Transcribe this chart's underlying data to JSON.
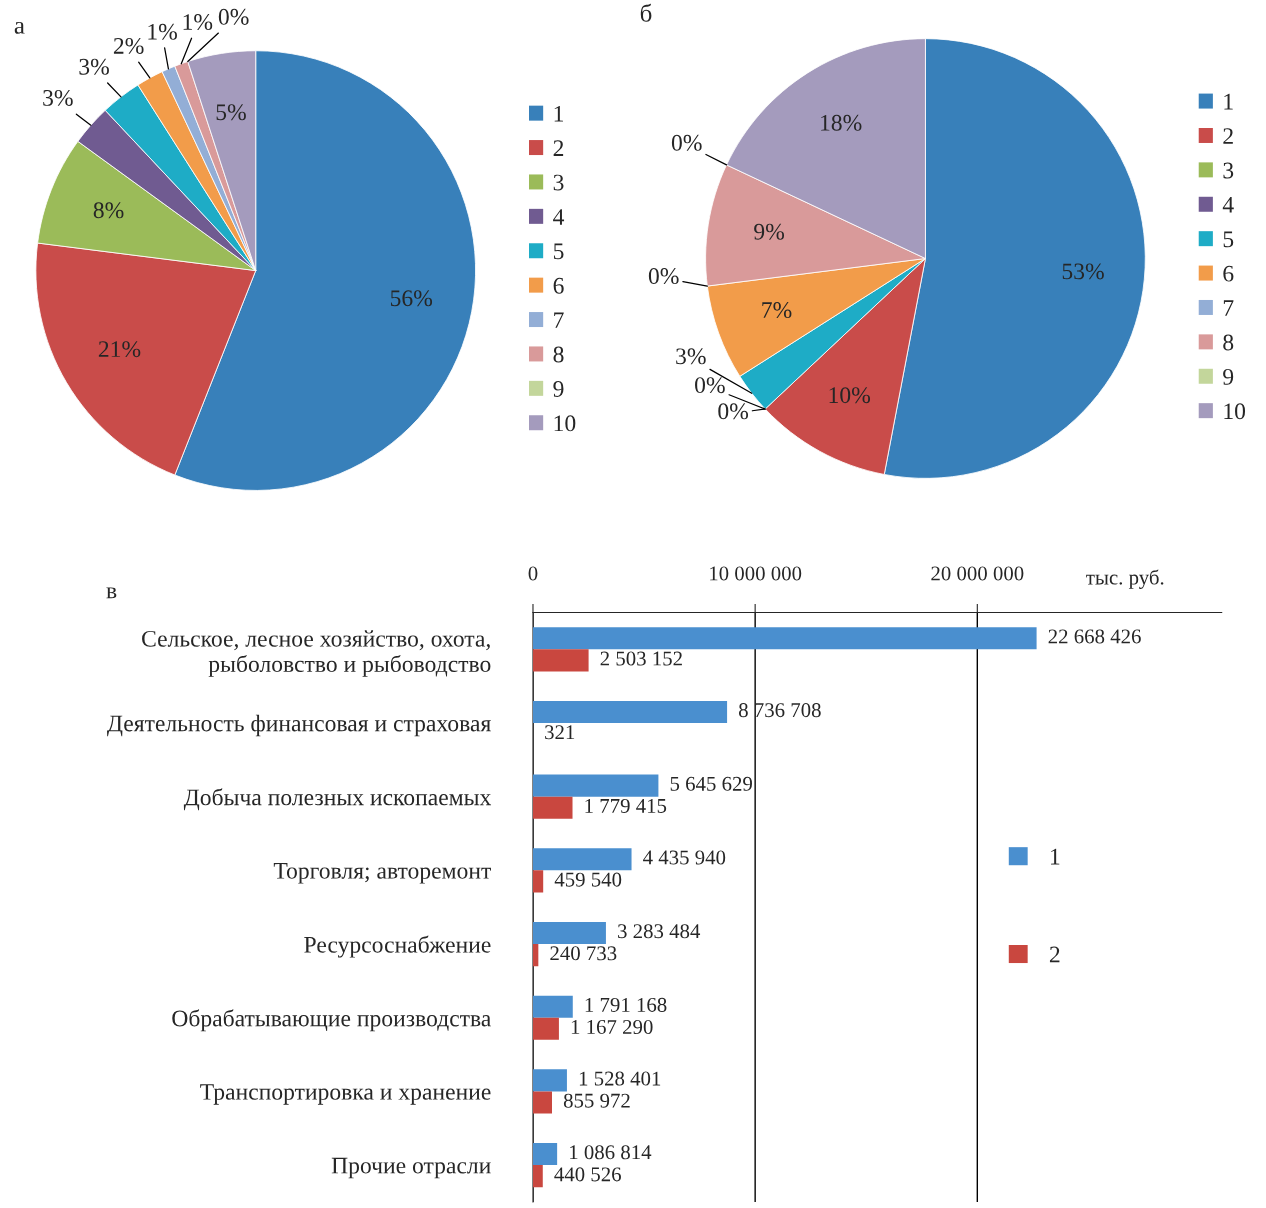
{
  "chart_data": [
    {
      "type": "pie",
      "title": "а",
      "categories": [
        "1",
        "2",
        "3",
        "4",
        "5",
        "6",
        "7",
        "8",
        "9",
        "10"
      ],
      "values": [
        56,
        21,
        8,
        3,
        3,
        2,
        1,
        1,
        0,
        5
      ],
      "value_labels": [
        "56%",
        "21%",
        "8%",
        "3%",
        "3%",
        "2%",
        "1%",
        "1%",
        "0%",
        "5%"
      ],
      "colors": [
        "#3880ba",
        "#c94c4a",
        "#9bbb59",
        "#705b91",
        "#1eacc6",
        "#f29c4a",
        "#93aed6",
        "#d99a9a",
        "#c3d69b",
        "#a49bbd"
      ],
      "legend": "right"
    },
    {
      "type": "pie",
      "title": "б",
      "categories": [
        "1",
        "2",
        "3",
        "4",
        "5",
        "6",
        "7",
        "8",
        "9",
        "10"
      ],
      "values": [
        53,
        10,
        0,
        0,
        3,
        7,
        0,
        9,
        0,
        18
      ],
      "value_labels": [
        "53%",
        "10%",
        "0%",
        "0%",
        "3%",
        "7%",
        "0%",
        "9%",
        "0%",
        "18%"
      ],
      "colors": [
        "#3880ba",
        "#c94c4a",
        "#9bbb59",
        "#705b91",
        "#1eacc6",
        "#f29c4a",
        "#93aed6",
        "#d99a9a",
        "#c3d69b",
        "#a49bbd"
      ],
      "legend": "right"
    },
    {
      "type": "bar",
      "title": "в",
      "orientation": "horizontal",
      "xlabel": "тыс. руб.",
      "categories": [
        "Сельское, лесное хозяйство, охота,\nрыболовство и рыбоводство",
        "Деятельность финансовая и страховая",
        "Добыча полезных ископаемых",
        "Торговля; авторемонт",
        "Ресурсоснабжение",
        "Обрабатывающие производства",
        "Транспортировка и хранение",
        "Прочие отрасли"
      ],
      "series": [
        {
          "name": "1",
          "color": "#4a8fcf",
          "values": [
            22668426,
            8736708,
            5645629,
            4435940,
            3283484,
            1791168,
            1528401,
            1086814
          ],
          "value_labels": [
            "22 668 426",
            "8 736 708",
            "5 645 629",
            "4 435 940",
            "3 283 484",
            "1 791 168",
            "1 528 401",
            "1 086 814"
          ]
        },
        {
          "name": "2",
          "color": "#c9473f",
          "values": [
            2503152,
            321,
            1779415,
            459540,
            240733,
            1167290,
            855972,
            440526
          ],
          "value_labels": [
            "2 503 152",
            "321",
            "1 779 415",
            "459 540",
            "240 733",
            "1 167 290",
            "855 972",
            "440 526"
          ]
        }
      ],
      "xlim": [
        0,
        31000000
      ],
      "xticks": [
        0,
        {
          "value": 10000000,
          "label": "10 000 000"
        },
        {
          "value": 20000000,
          "label": "20 000 000"
        }
      ],
      "grid": "x",
      "legend": "right"
    }
  ]
}
